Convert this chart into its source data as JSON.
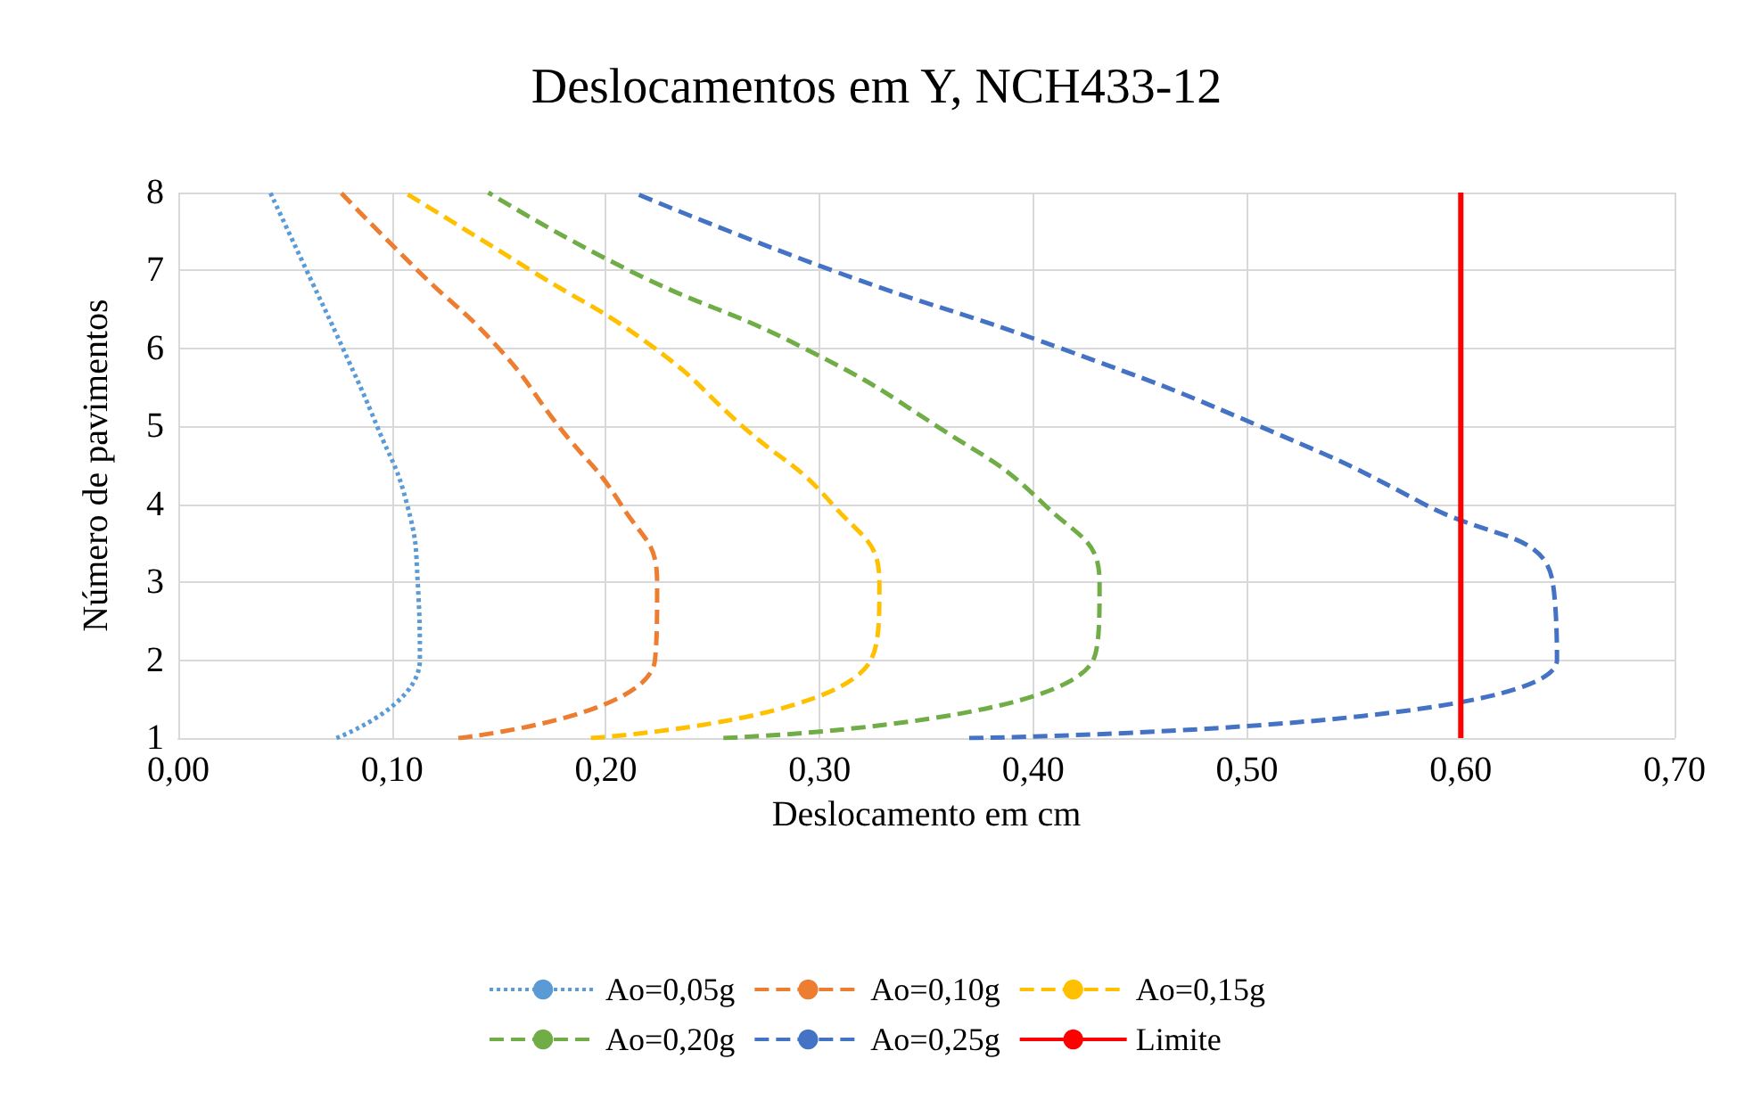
{
  "chart_data": {
    "type": "line",
    "title": "Deslocamentos em Y, NCH433-12",
    "xlabel": "Deslocamento em cm",
    "ylabel": "Número de pavimentos",
    "xlim": [
      0,
      0.7
    ],
    "xticks": [
      {
        "value": 0,
        "label": "0,00"
      },
      {
        "value": 0.1,
        "label": "0,10"
      },
      {
        "value": 0.2,
        "label": "0,20"
      },
      {
        "value": 0.3,
        "label": "0,30"
      },
      {
        "value": 0.4,
        "label": "0,40"
      },
      {
        "value": 0.5,
        "label": "0,50"
      },
      {
        "value": 0.6,
        "label": "0,60"
      },
      {
        "value": 0.7,
        "label": "0,70"
      }
    ],
    "ylim": [
      1,
      8
    ],
    "yticks": [
      1,
      2,
      3,
      4,
      5,
      6,
      7,
      8
    ],
    "grid": true,
    "legend": "bottom",
    "marker": "none",
    "series": [
      {
        "name": "Ao=0,05g",
        "color": "#5b9bd5",
        "line_style": "dotted",
        "x": [
          0.074,
          0.113,
          0.112,
          0.107,
          0.093,
          0.077,
          0.06,
          0.043
        ],
        "values": [
          1,
          2,
          3,
          4,
          5,
          6,
          7,
          8
        ]
      },
      {
        "name": "Ao=0,10g",
        "color": "#ed7d31",
        "line_style": "dashed",
        "x": [
          0.131,
          0.223,
          0.224,
          0.207,
          0.178,
          0.15,
          0.112,
          0.076
        ],
        "values": [
          1,
          2,
          3,
          4,
          5,
          6,
          7,
          8
        ]
      },
      {
        "name": "Ao=0,15g",
        "color": "#ffc000",
        "line_style": "dashed",
        "x": [
          0.193,
          0.324,
          0.328,
          0.306,
          0.264,
          0.223,
          0.165,
          0.106
        ],
        "values": [
          1,
          2,
          3,
          4,
          5,
          6,
          7,
          8
        ]
      },
      {
        "name": "Ao=0,20g",
        "color": "#70ad47",
        "line_style": "dashed",
        "x": [
          0.255,
          0.428,
          0.431,
          0.405,
          0.355,
          0.293,
          0.211,
          0.145
        ],
        "values": [
          1,
          2,
          3,
          4,
          5,
          6,
          7,
          8
        ]
      },
      {
        "name": "Ao=0,25g",
        "color": "#4472c4",
        "line_style": "dashed",
        "x": [
          0.37,
          0.645,
          0.643,
          0.583,
          0.506,
          0.413,
          0.306,
          0.213
        ],
        "values": [
          1,
          2,
          3,
          4,
          5,
          6,
          7,
          8
        ]
      },
      {
        "name": "Limite",
        "color": "#ff0000",
        "line_style": "solid",
        "x": [
          0.6,
          0.6
        ],
        "values": [
          1,
          8
        ]
      }
    ]
  }
}
